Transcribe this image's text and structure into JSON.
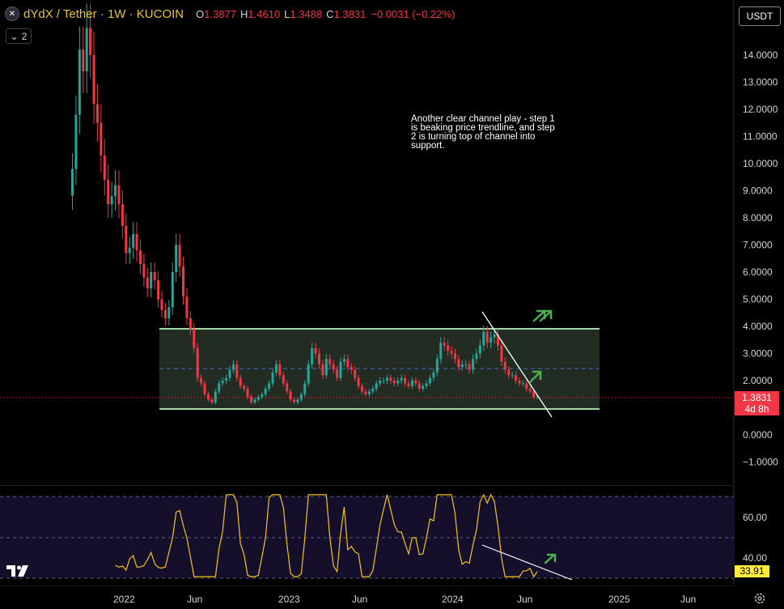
{
  "header": {
    "symbol": "dYdX / Tether · 1W · KUCOIN",
    "logo_icon": "dydx-logo-icon",
    "open_key": "O",
    "open": "1.3877",
    "high_key": "H",
    "high": "1.4610",
    "low_key": "L",
    "low": "1.3488",
    "close_key": "C",
    "close": "1.3831",
    "change": "−0.0031 (−0.22%)"
  },
  "indicator_toggle": {
    "icon": "chevron-down-icon",
    "count": "2"
  },
  "currency": "USDT",
  "price_axis": [
    "14.0000",
    "13.0000",
    "12.0000",
    "11.0000",
    "10.0000",
    "9.0000",
    "8.0000",
    "7.0000",
    "6.0000",
    "5.0000",
    "4.0000",
    "3.0000",
    "2.0000",
    "0.0000",
    "−1.0000"
  ],
  "current_price": {
    "value": "1.3831",
    "countdown": "4d 8h"
  },
  "annotation_text": "Another clear channel play - step 1\nis beaking price trendline, and step\n2 is turning top of channel into\nsupport.",
  "rsi_axis": [
    "60.00",
    "40.00"
  ],
  "rsi_value": "33.91",
  "time_axis": [
    "2022",
    "Jun",
    "2023",
    "Jun",
    "2024",
    "Jun",
    "2025",
    "Jun"
  ],
  "colors": {
    "up": "#26a69a",
    "down": "#f23645",
    "rsi": "#f5c518",
    "channel": "#a5d6a7",
    "arrow": "#4caf50"
  },
  "chart_data": {
    "type": "candlestick",
    "ylim": [
      -1.4,
      14.8
    ],
    "channel": {
      "top": 3.9,
      "mid": 2.45,
      "bottom": 0.95
    },
    "closes": [
      9.8,
      11.8,
      14.2,
      13.4,
      15.0,
      14.0,
      12.2,
      11.5,
      10.3,
      9.4,
      8.5,
      8.8,
      9.2,
      8.5,
      7.7,
      6.7,
      6.9,
      7.4,
      6.8,
      6.3,
      5.8,
      5.4,
      6.0,
      5.7,
      5.0,
      4.6,
      4.3,
      4.7,
      6.0,
      7.0,
      6.2,
      5.1,
      4.3,
      3.9,
      3.2,
      2.1,
      1.9,
      1.5,
      1.3,
      1.2,
      1.6,
      1.9,
      2.0,
      2.1,
      2.4,
      2.6,
      2.1,
      1.8,
      1.7,
      1.4,
      1.2,
      1.3,
      1.4,
      1.5,
      1.7,
      1.9,
      2.3,
      2.6,
      2.2,
      1.9,
      1.6,
      1.3,
      1.2,
      1.3,
      1.5,
      1.9,
      2.6,
      3.2,
      3.0,
      2.6,
      2.2,
      2.8,
      2.6,
      2.4,
      2.1,
      2.7,
      2.8,
      2.5,
      2.4,
      2.1,
      1.8,
      1.6,
      1.5,
      1.6,
      1.7,
      1.9,
      2.0,
      2.0,
      2.1,
      2.0,
      1.9,
      2.0,
      2.1,
      1.9,
      1.8,
      2.0,
      1.9,
      1.7,
      1.8,
      1.9,
      2.1,
      2.3,
      2.8,
      3.4,
      3.3,
      3.1,
      3.0,
      2.8,
      2.5,
      2.6,
      2.6,
      2.4,
      2.8,
      3.0,
      3.3,
      3.8,
      3.4,
      3.6,
      3.7,
      3.3,
      2.7,
      2.4,
      2.2,
      2.2,
      2.0,
      1.9,
      1.9,
      1.7,
      1.6,
      1.4,
      1.4
    ]
  }
}
